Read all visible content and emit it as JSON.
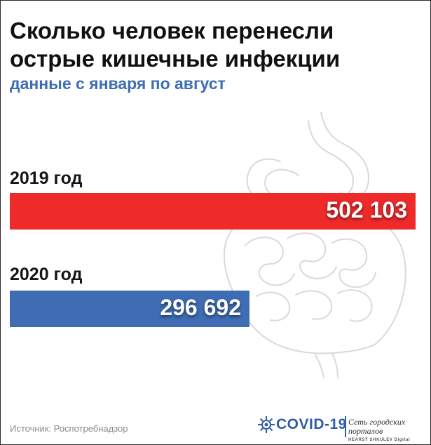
{
  "title": "Сколько человек перенесли острые кишечные инфекции",
  "subtitle": "данные с января по август",
  "chart_data": {
    "type": "bar",
    "orientation": "horizontal",
    "categories": [
      "2019 год",
      "2020 год"
    ],
    "values": [
      502103,
      296692
    ],
    "value_labels": [
      "502 103",
      "296 692"
    ],
    "colors": [
      "#ee2a2a",
      "#3e6db4"
    ]
  },
  "source": "Источник: Роспотребнадзор",
  "logos": {
    "covid": "COVID-19",
    "network_title": "Сеть городских порталов",
    "network_sub": "HEARST SHKULEV Digital"
  }
}
